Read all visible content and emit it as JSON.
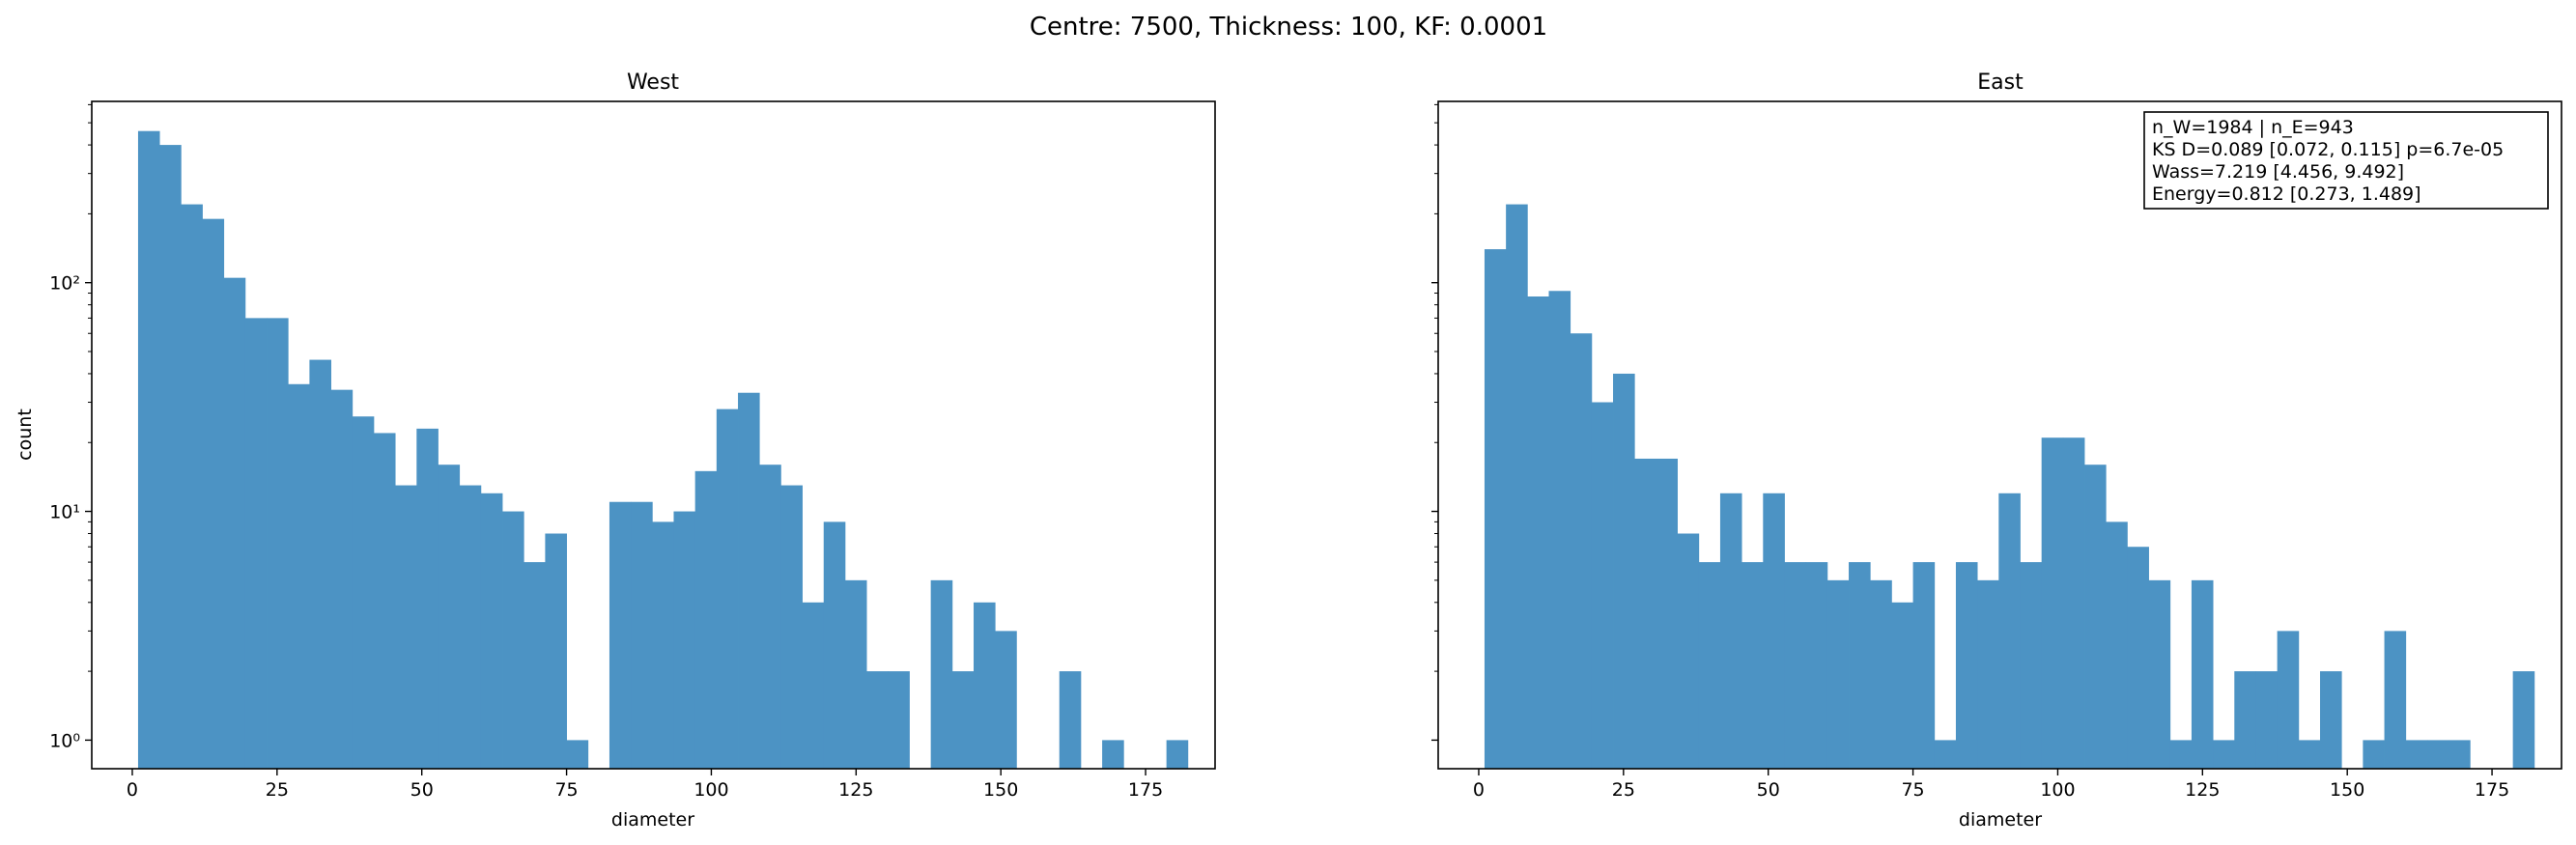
{
  "figure": {
    "title": "Centre: 7500, Thickness: 100, KF: 0.0001"
  },
  "chart_data": [
    {
      "type": "bar",
      "title": "West",
      "xlabel": "diameter",
      "ylabel": "count",
      "yscale": "log",
      "xlim": [
        -7,
        187
      ],
      "ylim": [
        0.75,
        620
      ],
      "bin_width": 3.7,
      "bin_start": 1.0,
      "xticks": [
        0,
        25,
        50,
        75,
        100,
        125,
        150,
        175
      ],
      "yticks": [
        {
          "value": 1,
          "label": "10⁰"
        },
        {
          "value": 10,
          "label": "10¹"
        },
        {
          "value": 100,
          "label": "10²"
        }
      ],
      "color": "#4c93c4",
      "counts": [
        460,
        400,
        220,
        190,
        105,
        70,
        70,
        36,
        46,
        34,
        26,
        22,
        13,
        23,
        16,
        13,
        12,
        10,
        6,
        8,
        1,
        0,
        11,
        11,
        9,
        10,
        15,
        28,
        33,
        16,
        13,
        4,
        9,
        5,
        2,
        2,
        0,
        5,
        2,
        4,
        3,
        0,
        0,
        2,
        0,
        1,
        0,
        0,
        1
      ]
    },
    {
      "type": "bar",
      "title": "East",
      "xlabel": "diameter",
      "ylabel": "",
      "yscale": "log",
      "xlim": [
        -7,
        187
      ],
      "ylim": [
        0.75,
        620
      ],
      "bin_width": 3.7,
      "bin_start": 1.0,
      "xticks": [
        0,
        25,
        50,
        75,
        100,
        125,
        150,
        175
      ],
      "color": "#4c93c4",
      "counts": [
        140,
        220,
        87,
        92,
        60,
        30,
        40,
        17,
        17,
        8,
        6,
        12,
        6,
        12,
        6,
        6,
        5,
        6,
        5,
        4,
        6,
        1,
        6,
        5,
        12,
        6,
        21,
        21,
        16,
        9,
        7,
        5,
        1,
        5,
        1,
        2,
        2,
        3,
        1,
        2,
        0,
        1,
        3,
        1,
        1,
        1,
        0,
        0,
        2
      ]
    }
  ],
  "stats_box": {
    "line1": "n_W=1984 | n_E=943",
    "line2": "KS D=0.089 [0.072, 0.115]  p=6.7e-05",
    "line3": "Wass=7.219 [4.456, 9.492]",
    "line4": "Energy=0.812 [0.273, 1.489]"
  }
}
